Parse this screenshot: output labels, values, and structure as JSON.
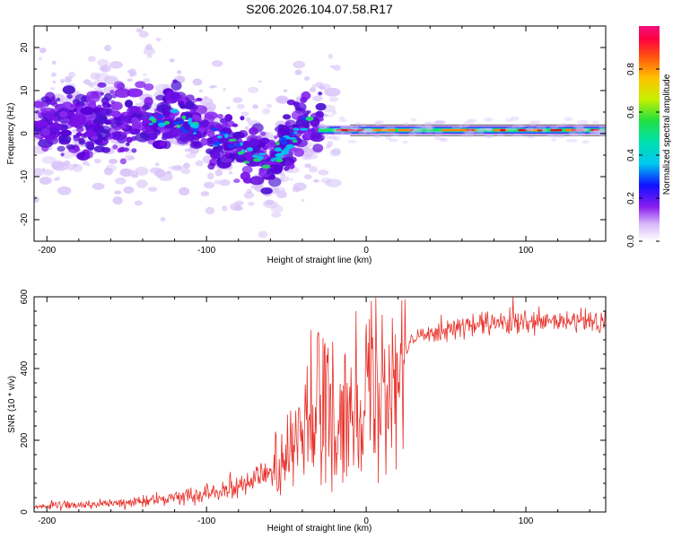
{
  "title": "S206.2026.104.07.58.R17",
  "colors": {
    "snr_line": "#e8312a",
    "ridge_high": "#e0102a",
    "ridge_mid": "#20e060",
    "cloud": "#7a10e8",
    "cloud_light": "#d8c2f8"
  },
  "chart_data": [
    {
      "type": "heatmap",
      "xlabel": "Height of straight line (km)",
      "ylabel": "Frequency (Hz)",
      "xlim": [
        -208,
        150
      ],
      "ylim": [
        -25,
        25
      ],
      "xticks": [
        -200,
        -100,
        0,
        100
      ],
      "xtick_labels": [
        "-200",
        "-100",
        "0",
        "100"
      ],
      "yticks": [
        -20,
        -10,
        0,
        10,
        20
      ],
      "ytick_labels": [
        "-20",
        "-10",
        "0",
        "10",
        "20"
      ],
      "grid": false,
      "colorbar": {
        "label": "Normalized spectral amplitude",
        "range": [
          0,
          1
        ],
        "ticks": [
          0.0,
          0.2,
          0.4,
          0.6,
          0.8
        ],
        "tick_labels": [
          "0.0",
          "0.2",
          "0.4",
          "0.6",
          "0.8"
        ],
        "colormap": "rainbow"
      },
      "features": [
        {
          "name": "dense cluster",
          "x_range": [
            -208,
            -30
          ],
          "center_freq_trend": [
            [
              -200,
              3
            ],
            [
              -150,
              2
            ],
            [
              -120,
              4
            ],
            [
              -100,
              0
            ],
            [
              -80,
              -3
            ],
            [
              -60,
              -7
            ],
            [
              -40,
              2
            ],
            [
              -30,
              3
            ]
          ]
        },
        {
          "name": "narrow ridge",
          "x_range": [
            -30,
            150
          ],
          "freq": 0.8,
          "amplitude": 0.9
        }
      ]
    },
    {
      "type": "line",
      "xlabel": "Height of straight line (km)",
      "ylabel": "SNR (10 * v/v)",
      "xlim": [
        -208,
        150
      ],
      "ylim": [
        0,
        600
      ],
      "xticks": [
        -200,
        -100,
        0,
        100
      ],
      "xtick_labels": [
        "-200",
        "-100",
        "0",
        "100"
      ],
      "yticks": [
        0,
        200,
        400,
        600
      ],
      "ytick_labels": [
        "0",
        "200",
        "400",
        "600"
      ],
      "grid": false,
      "series": [
        {
          "name": "SNR",
          "envelope": [
            [
              -208,
              15
            ],
            [
              -150,
              25
            ],
            [
              -120,
              40
            ],
            [
              -100,
              55
            ],
            [
              -80,
              75
            ],
            [
              -60,
              110
            ],
            [
              -45,
              170
            ],
            [
              -35,
              260
            ],
            [
              -25,
              300
            ],
            [
              -20,
              200
            ],
            [
              -15,
              250
            ],
            [
              -10,
              300
            ],
            [
              0,
              340
            ],
            [
              10,
              380
            ],
            [
              20,
              420
            ],
            [
              30,
              480
            ],
            [
              40,
              505
            ],
            [
              60,
              515
            ],
            [
              80,
              525
            ],
            [
              100,
              525
            ],
            [
              120,
              530
            ],
            [
              150,
              530
            ]
          ],
          "peaks": [
            [
              -30,
              500
            ],
            [
              -27,
              485
            ],
            [
              -21,
              475
            ],
            [
              10,
              550
            ],
            [
              92,
              600
            ]
          ]
        }
      ]
    }
  ]
}
